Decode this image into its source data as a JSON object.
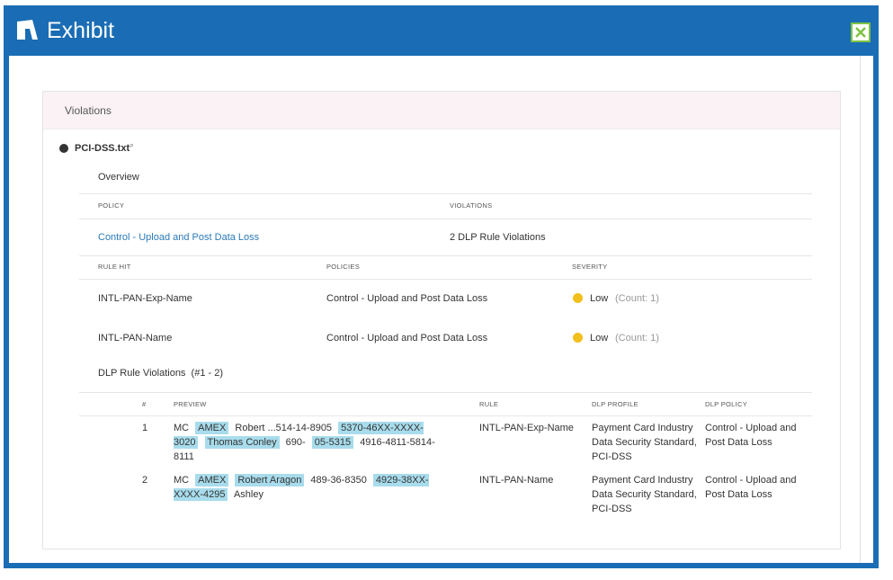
{
  "header": {
    "title": "Exhibit"
  },
  "panel": {
    "title": "Violations"
  },
  "file": {
    "name": "PCI-DSS.txt"
  },
  "overview": {
    "title": "Overview",
    "columns": [
      "POLICY",
      "VIOLATIONS"
    ],
    "policy": "Control - Upload and Post Data Loss",
    "violations": "2 DLP Rule Violations"
  },
  "rules": {
    "columns": [
      "RULE HIT",
      "POLICIES",
      "SEVERITY"
    ],
    "rows": [
      {
        "rule": "INTL-PAN-Exp-Name",
        "policy": "Control - Upload and Post Data Loss",
        "severity": "Low",
        "count": "(Count: 1)"
      },
      {
        "rule": "INTL-PAN-Name",
        "policy": "Control - Upload and Post Data Loss",
        "severity": "Low",
        "count": "(Count: 1)"
      }
    ]
  },
  "violations": {
    "title": "DLP Rule Violations  (#1 - 2)",
    "columns": [
      "#",
      "PREVIEW",
      "RULE",
      "DLP PROFILE",
      "DLP POLICY"
    ],
    "rows": [
      {
        "number": 1,
        "preview": [
          {
            "text": "MC",
            "highlighted": false
          },
          {
            "text": "AMEX",
            "highlighted": true
          },
          {
            "text": "Robert ...514-14-8905",
            "highlighted": false
          },
          {
            "text": "5370-46XX-XXXX-3020",
            "highlighted": true
          },
          {
            "text": "Thomas Conley",
            "highlighted": true
          },
          {
            "text": "690-",
            "highlighted": false
          },
          {
            "text": "05-5315",
            "highlighted": true
          },
          {
            "text": "4916-4811-5814-8111",
            "highlighted": false
          }
        ],
        "rule": "INTL-PAN-Exp-Name",
        "profile": "Payment Card Industry Data Security Standard, PCI-DSS",
        "policy": "Control - Upload and Post Data Loss"
      },
      {
        "number": 2,
        "preview": [
          {
            "text": "MC",
            "highlighted": false
          },
          {
            "text": "AMEX",
            "highlighted": true
          },
          {
            "text": "Robert Aragon",
            "highlighted": true
          },
          {
            "text": "489-36-8350",
            "highlighted": false
          },
          {
            "text": "4929-38XX-XXXX-4295",
            "highlighted": true
          },
          {
            "text": "Ashley",
            "highlighted": false
          }
        ],
        "rule": "INTL-PAN-Name",
        "profile": "Payment Card Industry Data Security Standard, PCI-DSS",
        "policy": "Control - Upload and Post Data Loss"
      }
    ]
  }
}
